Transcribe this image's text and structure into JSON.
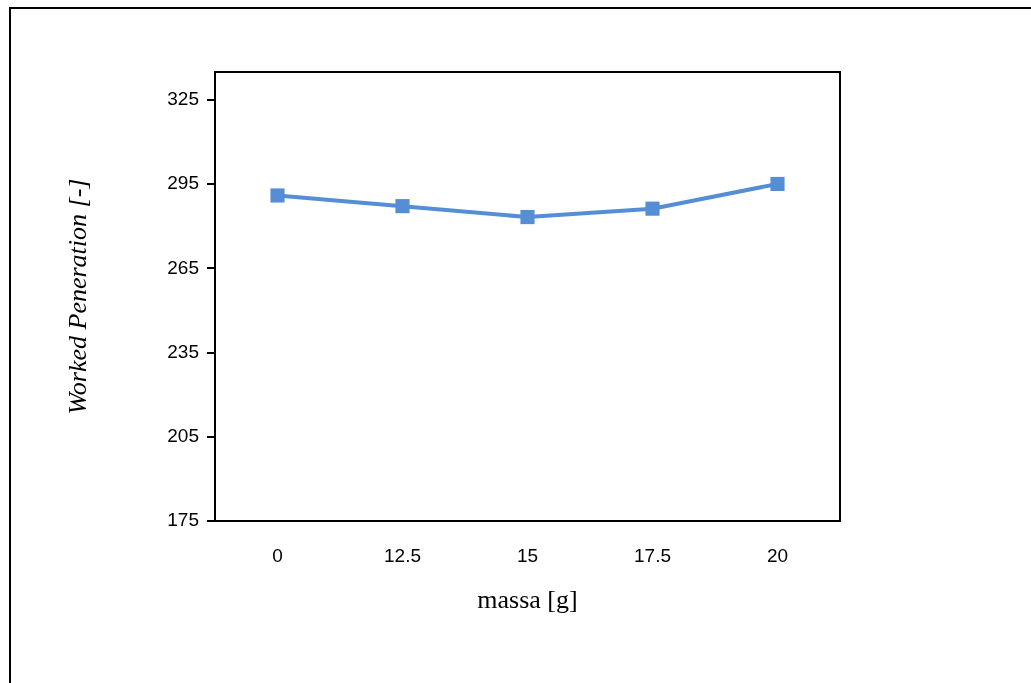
{
  "chart_data": {
    "type": "line",
    "xlabel": "massa [g]",
    "ylabel": "Worked Peneration [-]",
    "categories": [
      "0",
      "12.5",
      "15",
      "17.5",
      "20"
    ],
    "series": [
      {
        "color": "#558ed5",
        "values": [
          291,
          287.2,
          283.3,
          286.3,
          295.1
        ]
      }
    ],
    "ylim": [
      175,
      335
    ],
    "yticks": [
      175,
      205,
      235,
      265,
      295,
      325
    ],
    "grid": false,
    "legend": false,
    "marker": "square",
    "line_style": "solid"
  }
}
